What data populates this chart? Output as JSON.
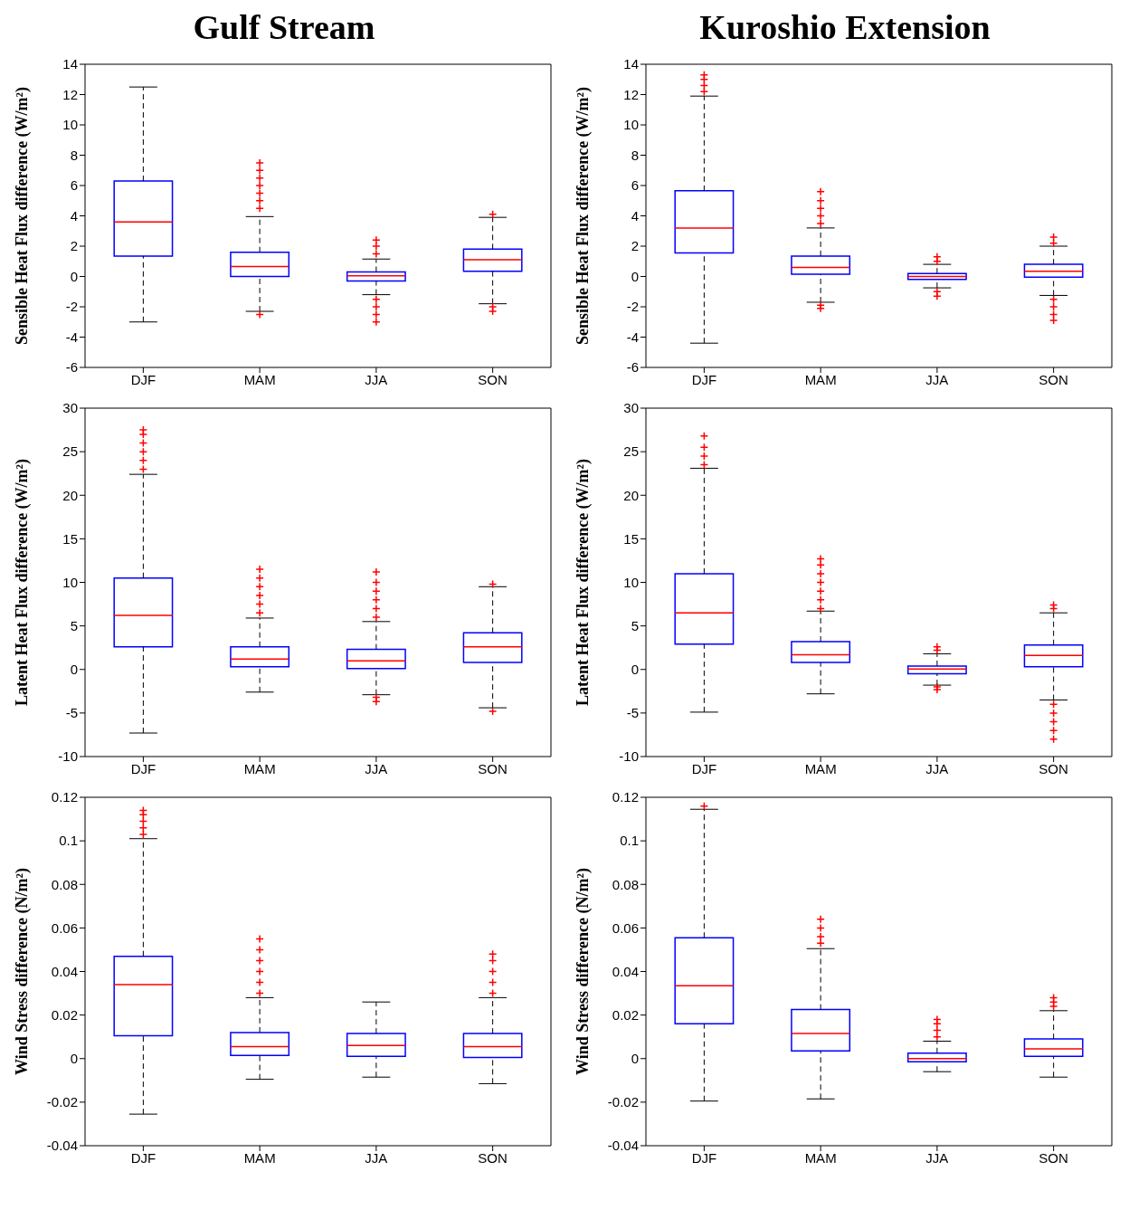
{
  "chart_data": [
    {
      "type": "box",
      "title": "Gulf Stream",
      "ylabel": "Sensible Heat Flux difference (W/m²)",
      "categories": [
        "DJF",
        "MAM",
        "JJA",
        "SON"
      ],
      "ylim": [
        -6,
        14
      ],
      "yticks": [
        -6,
        -4,
        -2,
        0,
        2,
        4,
        6,
        8,
        10,
        12,
        14
      ],
      "grid": false,
      "marker": "cross",
      "series": [
        {
          "color": "#0000ff",
          "boxes": [
            {
              "low": -3,
              "q1": 1.35,
              "median": 3.6,
              "q3": 6.3,
              "high": 12.5
            },
            {
              "low": -2.3,
              "q1": 0,
              "median": 0.65,
              "q3": 1.6,
              "high": 3.95,
              "outliers": [
                4.5,
                5,
                5.5,
                6,
                6.5,
                7,
                7.5,
                -2.5
              ]
            },
            {
              "low": -1.2,
              "q1": -0.3,
              "median": 0.05,
              "q3": 0.3,
              "high": 1.15,
              "outliers": [
                1.5,
                2,
                2.4,
                -1.5,
                -2,
                -2.5,
                -3
              ]
            },
            {
              "low": -1.8,
              "q1": 0.35,
              "median": 1.1,
              "q3": 1.8,
              "high": 3.9,
              "outliers": [
                4.1,
                -2,
                -2.3
              ]
            }
          ]
        }
      ]
    },
    {
      "type": "box",
      "title": "Kuroshio Extension",
      "ylabel": "Sensible Heat Flux difference (W/m²)",
      "categories": [
        "DJF",
        "MAM",
        "JJA",
        "SON"
      ],
      "ylim": [
        -6,
        14
      ],
      "yticks": [
        -6,
        -4,
        -2,
        0,
        2,
        4,
        6,
        8,
        10,
        12,
        14
      ],
      "grid": false,
      "marker": "cross",
      "series": [
        {
          "color": "#0000ff",
          "boxes": [
            {
              "low": -4.4,
              "q1": 1.55,
              "median": 3.2,
              "q3": 5.65,
              "high": 11.9,
              "outliers": [
                12.2,
                12.6,
                13,
                13.3
              ]
            },
            {
              "low": -1.7,
              "q1": 0.15,
              "median": 0.6,
              "q3": 1.35,
              "high": 3.2,
              "outliers": [
                3.5,
                4,
                4.5,
                5,
                5.6,
                -1.9,
                -2.1
              ]
            },
            {
              "low": -0.75,
              "q1": -0.2,
              "median": 0,
              "q3": 0.2,
              "high": 0.8,
              "outliers": [
                1,
                1.3,
                -1,
                -1.3
              ]
            },
            {
              "low": -1.25,
              "q1": -0.05,
              "median": 0.35,
              "q3": 0.8,
              "high": 2,
              "outliers": [
                2.2,
                2.6,
                -1.5,
                -2,
                -2.5,
                -2.9
              ]
            }
          ]
        }
      ]
    },
    {
      "type": "box",
      "ylabel": "Latent Heat Flux difference (W/m²)",
      "categories": [
        "DJF",
        "MAM",
        "JJA",
        "SON"
      ],
      "ylim": [
        -10,
        30
      ],
      "yticks": [
        -10,
        -5,
        0,
        5,
        10,
        15,
        20,
        25,
        30
      ],
      "grid": false,
      "marker": "cross",
      "series": [
        {
          "color": "#0000ff",
          "boxes": [
            {
              "low": -7.3,
              "q1": 2.6,
              "median": 6.2,
              "q3": 10.5,
              "high": 22.4,
              "outliers": [
                23,
                24,
                25,
                26,
                27,
                27.5
              ]
            },
            {
              "low": -2.6,
              "q1": 0.3,
              "median": 1.2,
              "q3": 2.6,
              "high": 5.9,
              "outliers": [
                6.5,
                7.5,
                8.5,
                9.5,
                10.5,
                11.5
              ]
            },
            {
              "low": -2.9,
              "q1": 0.1,
              "median": 1,
              "q3": 2.3,
              "high": 5.5,
              "outliers": [
                6,
                7,
                8,
                9,
                10,
                11.2,
                -3.2,
                -3.7
              ]
            },
            {
              "low": -4.4,
              "q1": 0.8,
              "median": 2.6,
              "q3": 4.2,
              "high": 9.5,
              "outliers": [
                9.8,
                -4.8
              ]
            }
          ]
        }
      ]
    },
    {
      "type": "box",
      "ylabel": "Latent Heat Flux difference (W/m²)",
      "categories": [
        "DJF",
        "MAM",
        "JJA",
        "SON"
      ],
      "ylim": [
        -10,
        30
      ],
      "yticks": [
        -10,
        -5,
        0,
        5,
        10,
        15,
        20,
        25,
        30
      ],
      "grid": false,
      "marker": "cross",
      "series": [
        {
          "color": "#0000ff",
          "boxes": [
            {
              "low": -4.9,
              "q1": 2.9,
              "median": 6.5,
              "q3": 11,
              "high": 23.1,
              "outliers": [
                23.5,
                24.5,
                25.5,
                26.8
              ]
            },
            {
              "low": -2.8,
              "q1": 0.8,
              "median": 1.7,
              "q3": 3.2,
              "high": 6.7,
              "outliers": [
                7,
                8,
                9,
                10,
                11,
                12,
                12.7
              ]
            },
            {
              "low": -1.8,
              "q1": -0.5,
              "median": 0.05,
              "q3": 0.4,
              "high": 1.8,
              "outliers": [
                2.2,
                2.6,
                -2,
                -2.3
              ]
            },
            {
              "low": -3.5,
              "q1": 0.3,
              "median": 1.6,
              "q3": 2.8,
              "high": 6.5,
              "outliers": [
                7,
                7.4,
                -4,
                -5,
                -6,
                -7,
                -8
              ]
            }
          ]
        }
      ]
    },
    {
      "type": "box",
      "ylabel": "Wind Stress difference (N/m²)",
      "categories": [
        "DJF",
        "MAM",
        "JJA",
        "SON"
      ],
      "ylim": [
        -0.04,
        0.12
      ],
      "yticks": [
        -0.04,
        -0.02,
        0,
        0.02,
        0.04,
        0.06,
        0.08,
        0.1,
        0.12
      ],
      "grid": false,
      "marker": "cross",
      "series": [
        {
          "color": "#0000ff",
          "boxes": [
            {
              "low": -0.0255,
              "q1": 0.0105,
              "median": 0.034,
              "q3": 0.047,
              "high": 0.101,
              "outliers": [
                0.103,
                0.106,
                0.109,
                0.112,
                0.114
              ]
            },
            {
              "low": -0.0095,
              "q1": 0.0015,
              "median": 0.0055,
              "q3": 0.012,
              "high": 0.028,
              "outliers": [
                0.03,
                0.035,
                0.04,
                0.045,
                0.05,
                0.055
              ]
            },
            {
              "low": -0.0085,
              "q1": 0.001,
              "median": 0.006,
              "q3": 0.0115,
              "high": 0.026
            },
            {
              "low": -0.0115,
              "q1": 0.0005,
              "median": 0.0055,
              "q3": 0.0115,
              "high": 0.028,
              "outliers": [
                0.03,
                0.035,
                0.04,
                0.045,
                0.048
              ]
            }
          ]
        }
      ]
    },
    {
      "type": "box",
      "ylabel": "Wind Stress difference (N/m²)",
      "categories": [
        "DJF",
        "MAM",
        "JJA",
        "SON"
      ],
      "ylim": [
        -0.04,
        0.12
      ],
      "yticks": [
        -0.04,
        -0.02,
        0,
        0.02,
        0.04,
        0.06,
        0.08,
        0.1,
        0.12
      ],
      "grid": false,
      "marker": "cross",
      "series": [
        {
          "color": "#0000ff",
          "boxes": [
            {
              "low": -0.0195,
              "q1": 0.016,
              "median": 0.0335,
              "q3": 0.0555,
              "high": 0.1145,
              "outliers": [
                0.116
              ]
            },
            {
              "low": -0.0185,
              "q1": 0.0035,
              "median": 0.0115,
              "q3": 0.0225,
              "high": 0.0505,
              "outliers": [
                0.053,
                0.056,
                0.06,
                0.064
              ]
            },
            {
              "low": -0.006,
              "q1": -0.0015,
              "median": 0,
              "q3": 0.0025,
              "high": 0.008,
              "outliers": [
                0.01,
                0.013,
                0.016,
                0.018
              ]
            },
            {
              "low": -0.0085,
              "q1": 0.001,
              "median": 0.0045,
              "q3": 0.009,
              "high": 0.022,
              "outliers": [
                0.024,
                0.026,
                0.028
              ]
            }
          ]
        }
      ]
    }
  ]
}
